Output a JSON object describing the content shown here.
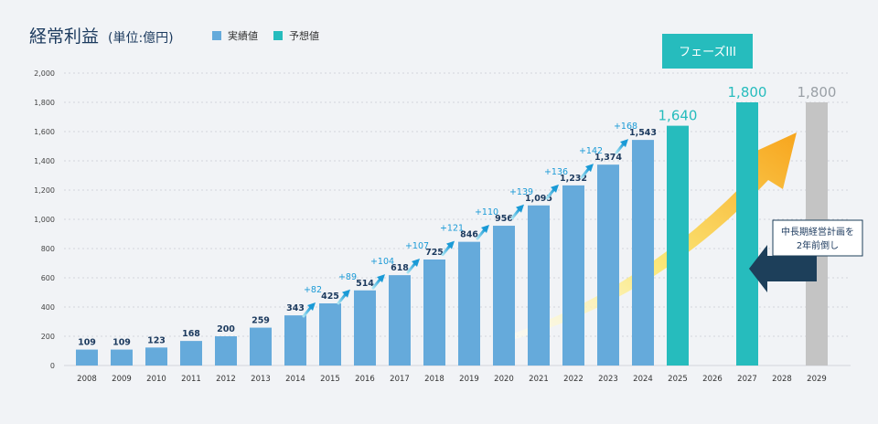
{
  "chart_data": {
    "type": "bar",
    "title": "経常利益",
    "unit_label": "(単位:億円)",
    "legend": [
      {
        "label": "実績値",
        "color": "#65aadb"
      },
      {
        "label": "予想値",
        "color": "#26bcbd"
      }
    ],
    "ylim": [
      0,
      2000
    ],
    "yticks": [
      0,
      200,
      400,
      600,
      800,
      1000,
      1200,
      1400,
      1600,
      1800,
      2000
    ],
    "ytick_labels": [
      "0",
      "200",
      "400",
      "600",
      "800",
      "1,000",
      "1,200",
      "1,400",
      "1,600",
      "1,800",
      "2,000"
    ],
    "categories": [
      "2008",
      "2009",
      "2010",
      "2011",
      "2012",
      "2013",
      "2014",
      "2015",
      "2016",
      "2017",
      "2018",
      "2019",
      "2020",
      "2021",
      "2022",
      "2023",
      "2024",
      "2025",
      "2026",
      "2027",
      "2028",
      "2029"
    ],
    "bars": [
      {
        "year": "2008",
        "value": 109,
        "label": "109",
        "kind": "actual"
      },
      {
        "year": "2009",
        "value": 109,
        "label": "109",
        "kind": "actual"
      },
      {
        "year": "2010",
        "value": 123,
        "label": "123",
        "kind": "actual"
      },
      {
        "year": "2011",
        "value": 168,
        "label": "168",
        "kind": "actual"
      },
      {
        "year": "2012",
        "value": 200,
        "label": "200",
        "kind": "actual"
      },
      {
        "year": "2013",
        "value": 259,
        "label": "259",
        "kind": "actual"
      },
      {
        "year": "2014",
        "value": 343,
        "label": "343",
        "kind": "actual"
      },
      {
        "year": "2015",
        "value": 425,
        "label": "425",
        "kind": "actual"
      },
      {
        "year": "2016",
        "value": 514,
        "label": "514",
        "kind": "actual"
      },
      {
        "year": "2017",
        "value": 618,
        "label": "618",
        "kind": "actual"
      },
      {
        "year": "2018",
        "value": 725,
        "label": "725",
        "kind": "actual"
      },
      {
        "year": "2019",
        "value": 846,
        "label": "846",
        "kind": "actual"
      },
      {
        "year": "2020",
        "value": 956,
        "label": "956",
        "kind": "actual"
      },
      {
        "year": "2021",
        "value": 1095,
        "label": "1,095",
        "kind": "actual"
      },
      {
        "year": "2022",
        "value": 1232,
        "label": "1,232",
        "kind": "actual"
      },
      {
        "year": "2023",
        "value": 1374,
        "label": "1,374",
        "kind": "actual"
      },
      {
        "year": "2024",
        "value": 1543,
        "label": "1,543",
        "kind": "actual"
      },
      {
        "year": "2025",
        "value": 1640,
        "label": "1,640",
        "kind": "forecast"
      },
      {
        "year": "2027",
        "value": 1800,
        "label": "1,800",
        "kind": "forecast"
      },
      {
        "year": "2029",
        "value": 1800,
        "label": "1,800",
        "kind": "original_plan"
      }
    ],
    "increments": [
      {
        "from": "2014",
        "to": "2015",
        "label": "+82"
      },
      {
        "from": "2015",
        "to": "2016",
        "label": "+89"
      },
      {
        "from": "2016",
        "to": "2017",
        "label": "+104"
      },
      {
        "from": "2017",
        "to": "2018",
        "label": "+107"
      },
      {
        "from": "2018",
        "to": "2019",
        "label": "+121"
      },
      {
        "from": "2019",
        "to": "2020",
        "label": "+110"
      },
      {
        "from": "2020",
        "to": "2021",
        "label": "+139"
      },
      {
        "from": "2021",
        "to": "2022",
        "label": "+136"
      },
      {
        "from": "2022",
        "to": "2023",
        "label": "+142"
      },
      {
        "from": "2023",
        "to": "2024",
        "label": "+168"
      }
    ],
    "phase_label": "フェーズIII",
    "plan_note_line1": "中長期経営計画を",
    "plan_note_line2": "2年前倒し",
    "colors": {
      "actual": "#65aadb",
      "forecast": "#26bcbd",
      "original_plan": "#c4c4c4",
      "value_text": "#1c3a5e",
      "increment_text": "#1a9ad6",
      "dark_arrow": "#1d3f5a",
      "grid": "#c9cdd3",
      "title": "#1c3a5e"
    }
  }
}
